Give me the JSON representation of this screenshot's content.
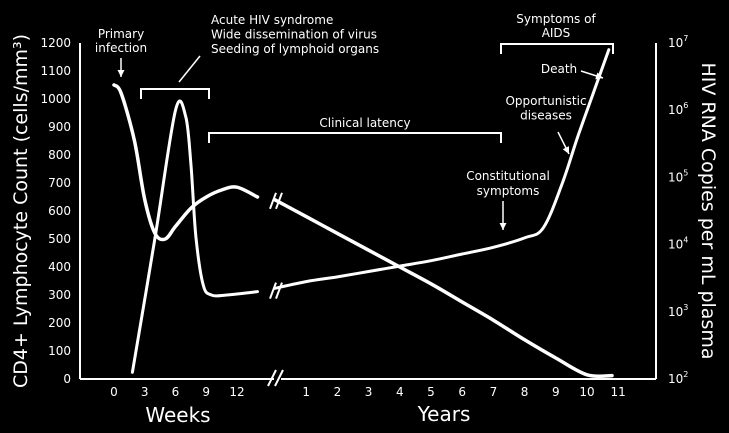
{
  "chart_data": {
    "type": "line",
    "title": "",
    "ylabel_left": "CD4+ Lymphocyte Count (cells/mm³)",
    "ylabel_right": "HIV RNA Copies per mL plasma",
    "xlabel_weeks": "Weeks",
    "xlabel_years": "Years",
    "y_left_ticks": [
      "0",
      "100",
      "200",
      "300",
      "400",
      "500",
      "600",
      "700",
      "800",
      "900",
      "1000",
      "1100",
      "1200"
    ],
    "y_left_range": [
      0,
      1200
    ],
    "y_right_ticks": [
      {
        "base": "10",
        "exp": "2"
      },
      {
        "base": "10",
        "exp": "3"
      },
      {
        "base": "10",
        "exp": "4"
      },
      {
        "base": "10",
        "exp": "5"
      },
      {
        "base": "10",
        "exp": "6"
      },
      {
        "base": "10",
        "exp": "7"
      }
    ],
    "y_right_log_range": [
      2,
      7
    ],
    "x_weeks_ticks": [
      "0",
      "3",
      "6",
      "9",
      "12"
    ],
    "x_years_ticks": [
      "1",
      "2",
      "3",
      "4",
      "5",
      "6",
      "7",
      "8",
      "9",
      "10",
      "11"
    ],
    "series": [
      {
        "x_unit": "weeks/years",
        "weeks": {
          "x": [
            0,
            0.7,
            2,
            3,
            4,
            5,
            6,
            7.5,
            9,
            10.5,
            12,
            14
          ],
          "y": [
            1050,
            1020,
            850,
            640,
            520,
            500,
            545,
            610,
            650,
            675,
            685,
            650
          ]
        },
        "years": {
          "x": [
            0,
            1,
            2,
            3,
            4,
            5,
            6,
            7,
            8,
            9,
            10,
            10.8
          ],
          "y": [
            640,
            580,
            520,
            460,
            400,
            340,
            275,
            210,
            140,
            75,
            15,
            12
          ]
        }
      },
      {
        "x_unit": "weeks/years",
        "weeks": {
          "x": [
            1.8,
            4,
            6,
            7,
            7.5,
            8,
            8.7,
            9.5,
            11,
            14
          ],
          "y": [
            2.1,
            4.1,
            6.0,
            5.9,
            5.2,
            4.1,
            3.4,
            3.25,
            3.25,
            3.3
          ]
        },
        "years": {
          "x": [
            0,
            1,
            2,
            3,
            4,
            5,
            6,
            7,
            8,
            8.6,
            9.2,
            9.7,
            10.2,
            10.7
          ],
          "y": [
            3.35,
            3.45,
            3.52,
            3.6,
            3.68,
            3.76,
            3.86,
            3.96,
            4.1,
            4.25,
            4.9,
            5.6,
            6.25,
            6.9
          ]
        }
      }
    ],
    "annotations": [
      {
        "id": "primary",
        "lines": [
          "Primary",
          "infection"
        ]
      },
      {
        "id": "acute",
        "lines": [
          "Acute HIV syndrome",
          "Wide dissemination of virus",
          "Seeding of lymphoid organs"
        ]
      },
      {
        "id": "latency",
        "lines": [
          "Clinical latency"
        ]
      },
      {
        "id": "aids",
        "lines": [
          "Symptoms of",
          "AIDS"
        ]
      },
      {
        "id": "death",
        "lines": [
          "Death"
        ]
      },
      {
        "id": "opportunistic",
        "lines": [
          "Opportunistic",
          "diseases"
        ]
      },
      {
        "id": "constitutional",
        "lines": [
          "Constitutional",
          "symptoms"
        ]
      }
    ],
    "colors": {
      "background": "#000000",
      "foreground": "#ffffff"
    },
    "grid": false,
    "legend": "none"
  }
}
